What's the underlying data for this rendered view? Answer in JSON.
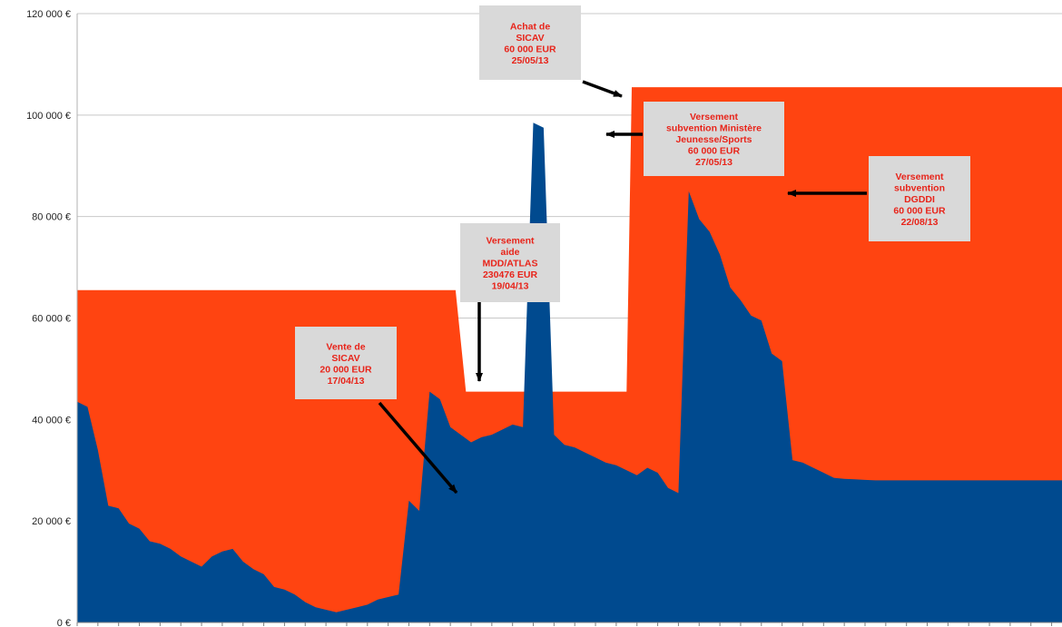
{
  "chart_data": {
    "type": "area",
    "ylim": [
      0,
      120000
    ],
    "y_ticks": [
      {
        "value": 0,
        "label": "0 €"
      },
      {
        "value": 20000,
        "label": "20 000 €"
      },
      {
        "value": 40000,
        "label": "40 000 €"
      },
      {
        "value": 60000,
        "label": "60 000 €"
      },
      {
        "value": 80000,
        "label": "80 000 €"
      },
      {
        "value": 100000,
        "label": "100 000 €"
      },
      {
        "value": 120000,
        "label": "120 000 €"
      }
    ],
    "grid": true,
    "series": [
      {
        "color": "#ff4411",
        "x": [
          0,
          73,
          75,
          79,
          81,
          104,
          106,
          107,
          109,
          111,
          190
        ],
        "values": [
          65500,
          65500,
          45500,
          45500,
          45500,
          45500,
          45500,
          105500,
          105500,
          105500,
          105500
        ]
      },
      {
        "color": "#004a8f",
        "x": [
          0,
          2,
          4,
          6,
          8,
          10,
          12,
          14,
          16,
          18,
          20,
          22,
          24,
          26,
          28,
          30,
          32,
          34,
          36,
          38,
          40,
          42,
          44,
          46,
          48,
          50,
          52,
          54,
          56,
          58,
          60,
          62,
          64,
          66,
          68,
          70,
          72,
          74,
          76,
          78,
          80,
          82,
          84,
          86,
          88,
          90,
          92,
          94,
          96,
          98,
          100,
          102,
          104,
          106,
          108,
          110,
          112,
          114,
          116,
          118,
          120,
          122,
          124,
          126,
          128,
          130,
          132,
          134,
          136,
          138,
          140,
          142,
          144,
          146,
          148,
          150,
          152,
          154,
          156,
          158,
          160,
          162,
          164,
          166,
          168,
          170,
          172,
          174,
          176,
          178,
          180,
          182,
          184,
          186,
          188,
          190
        ],
        "values": [
          43500,
          42500,
          34000,
          23000,
          22500,
          19500,
          18500,
          16000,
          15500,
          14500,
          13000,
          12000,
          11000,
          13000,
          14000,
          14500,
          12000,
          10500,
          9500,
          7000,
          6500,
          5500,
          4000,
          3000,
          2500,
          2000,
          2500,
          3000,
          3500,
          4500,
          5000,
          5500,
          24000,
          22000,
          45500,
          44000,
          38500,
          37000,
          35500,
          36500,
          37000,
          38000,
          39000,
          38500,
          98500,
          97500,
          37000,
          35000,
          34500,
          33500,
          32500,
          31500,
          31000,
          30000,
          29000,
          30500,
          29500,
          26500,
          25500,
          85000,
          79500,
          77000,
          72500,
          66000,
          63500,
          60500,
          59500,
          53000,
          51500,
          32000,
          31500,
          30500,
          29500,
          28500,
          28300,
          28200,
          28100,
          28000,
          28000,
          28000,
          28000,
          28000,
          28000,
          28000,
          28000,
          28000,
          28000,
          28000,
          28000,
          28000,
          28000,
          28000,
          28000,
          28000,
          28000,
          28000
        ]
      }
    ],
    "annotations": [
      {
        "lines": [
          "Vente de",
          "SICAV",
          "20 000 EUR",
          "17/04/13"
        ]
      },
      {
        "lines": [
          "Versement",
          "aide",
          "MDD/ATLAS",
          "230476 EUR",
          "19/04/13"
        ]
      },
      {
        "lines": [
          "Achat de",
          "SICAV",
          "60 000 EUR",
          "25/05/13"
        ]
      },
      {
        "lines": [
          "Versement",
          "subvention Ministère",
          "Jeunesse/Sports",
          "60 000 EUR",
          "27/05/13"
        ]
      },
      {
        "lines": [
          "Versement",
          "subvention",
          "DGDDI",
          "60 000 EUR",
          "22/08/13"
        ]
      }
    ]
  }
}
